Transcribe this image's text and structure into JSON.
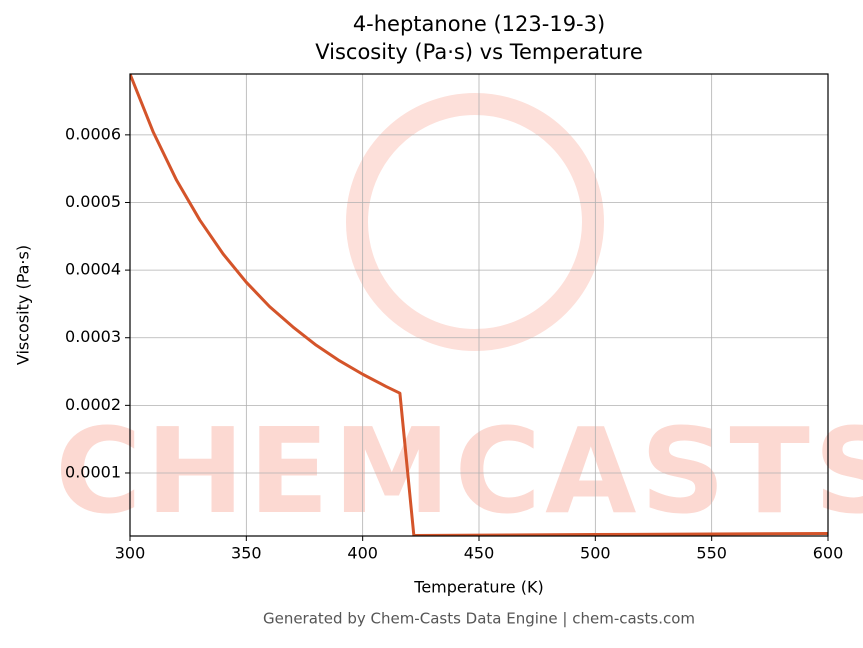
{
  "chart_data": {
    "type": "line",
    "title": "4-heptanone (123-19-3)",
    "subtitle": "Viscosity (Pa·s) vs Temperature",
    "x_label": "Temperature (K)",
    "y_label": "Viscosity (Pa·s)",
    "footer": "Generated by Chem-Casts Data Engine | chem-casts.com",
    "watermark": "CHEMCASTS",
    "x": [
      300,
      310,
      320,
      330,
      340,
      350,
      360,
      370,
      380,
      390,
      400,
      410,
      416,
      422,
      500,
      600
    ],
    "series": [
      {
        "name": "Viscosity",
        "color": "#d4542a",
        "values": [
          0.00069,
          0.000604,
          0.000533,
          0.000474,
          0.000424,
          0.000382,
          0.000346,
          0.000316,
          0.000289,
          0.000266,
          0.000246,
          0.000228,
          0.000218,
          7.5e-06,
          9e-06,
          1.05e-05
        ]
      }
    ],
    "xlim": [
      300,
      600
    ],
    "xticks": [
      300,
      350,
      400,
      450,
      500,
      550,
      600
    ],
    "ylim": [
      6.8e-06,
      0.00069
    ],
    "yticks": [
      0.0001,
      0.0002,
      0.0003,
      0.0004,
      0.0005,
      0.0006
    ],
    "grid": true
  }
}
